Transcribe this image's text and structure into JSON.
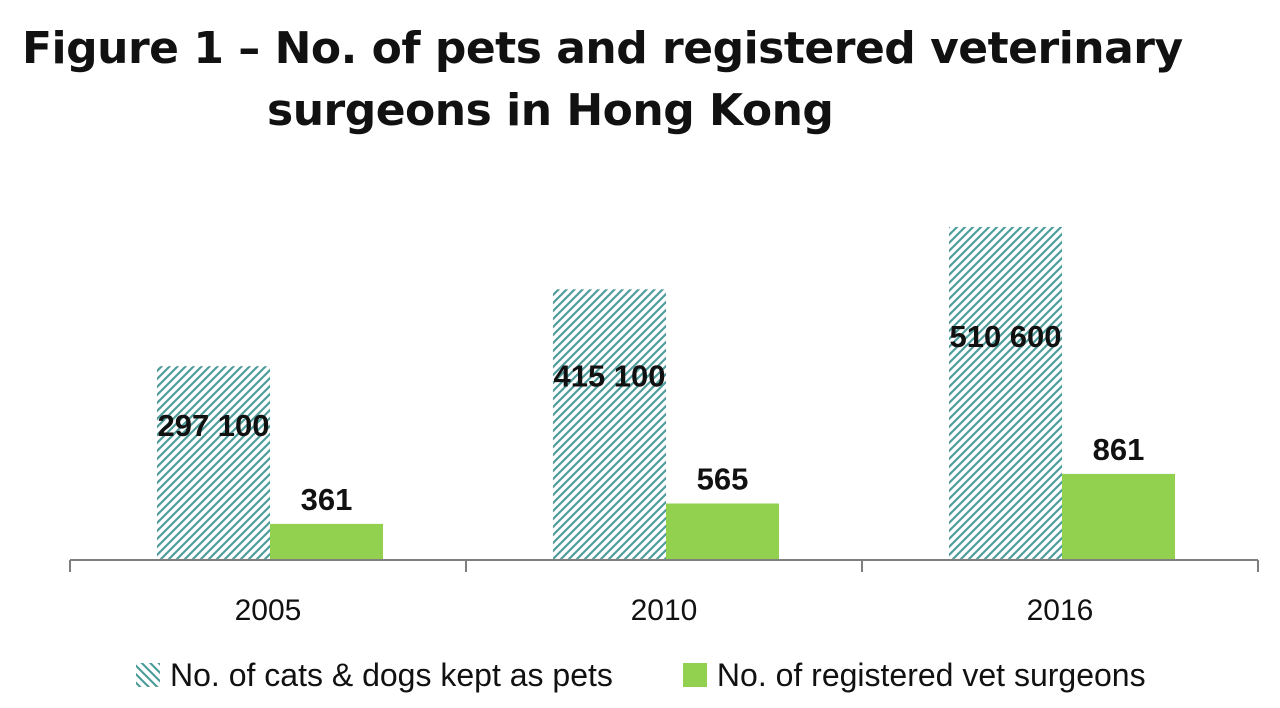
{
  "title_line1": "Figure 1 – No. of pets and registered veterinary",
  "title_line2": "surgeons in Hong Kong",
  "colors": {
    "pets_hatch": "#4e9c9b",
    "vets_fill": "#92d050",
    "axis": "#7f7f7f"
  },
  "chart_data": {
    "type": "bar",
    "title": "Figure 1 – No. of pets and registered veterinary surgeons in Hong Kong",
    "xlabel": "",
    "ylabel": "",
    "categories": [
      "2005",
      "2010",
      "2016"
    ],
    "series": [
      {
        "name": "No. of cats & dogs kept as pets",
        "values": [
          297100,
          415100,
          510600
        ],
        "labels": [
          "297 100",
          "415 100",
          "510 600"
        ],
        "style": "hatched",
        "ylim": [
          0,
          510600
        ]
      },
      {
        "name": "No. of registered vet surgeons",
        "values": [
          361,
          565,
          861
        ],
        "labels": [
          "361",
          "565",
          "861"
        ],
        "style": "solid",
        "ylim": [
          0,
          4900
        ]
      }
    ],
    "grid": false,
    "legend": "bottom",
    "value_labels": true
  }
}
